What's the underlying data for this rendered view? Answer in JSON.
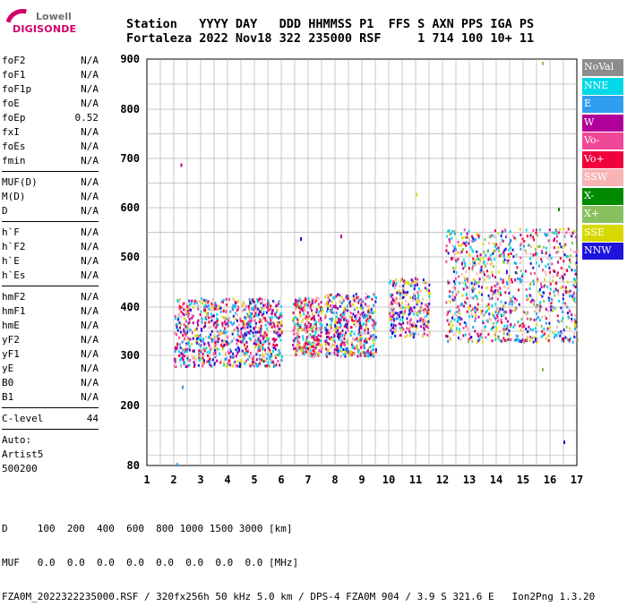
{
  "logo": {
    "brand_top": "Lowell",
    "brand_bottom": "DIGISONDE"
  },
  "header": {
    "line1": "Station   YYYY DAY   DDD HHMMSS P1  FFS S AXN PPS IGA PS",
    "line2": "Fortaleza 2022 Nov18 322 235000 RSF     1 714 100 10+ 11"
  },
  "params": {
    "group1": [
      {
        "name": "foF2",
        "value": "N/A"
      },
      {
        "name": "foF1",
        "value": "N/A"
      },
      {
        "name": "foF1p",
        "value": "N/A"
      },
      {
        "name": "foE",
        "value": "N/A"
      },
      {
        "name": "foEp",
        "value": "0.52"
      },
      {
        "name": "fxI",
        "value": "N/A"
      },
      {
        "name": "foEs",
        "value": "N/A"
      },
      {
        "name": "fmin",
        "value": "N/A"
      }
    ],
    "group2": [
      {
        "name": "MUF(D)",
        "value": "N/A"
      },
      {
        "name": "M(D)",
        "value": "N/A"
      },
      {
        "name": "D",
        "value": "N/A"
      }
    ],
    "group3": [
      {
        "name": "h`F",
        "value": "N/A"
      },
      {
        "name": "h`F2",
        "value": "N/A"
      },
      {
        "name": "h`E",
        "value": "N/A"
      },
      {
        "name": "h`Es",
        "value": "N/A"
      }
    ],
    "group4": [
      {
        "name": "hmF2",
        "value": "N/A"
      },
      {
        "name": "hmF1",
        "value": "N/A"
      },
      {
        "name": "hmE",
        "value": "N/A"
      },
      {
        "name": "yF2",
        "value": "N/A"
      },
      {
        "name": "yF1",
        "value": "N/A"
      },
      {
        "name": "yE",
        "value": "N/A"
      },
      {
        "name": "B0",
        "value": "N/A"
      },
      {
        "name": "B1",
        "value": "N/A"
      }
    ],
    "group5": [
      {
        "name": "C-level",
        "value": "44"
      }
    ]
  },
  "auto": {
    "line1": "Auto:",
    "line2": "Artist5",
    "line3": "500200"
  },
  "legend": [
    {
      "label": "NoVal",
      "color": "#8c8c8c"
    },
    {
      "label": "NNE",
      "color": "#00d8e8"
    },
    {
      "label": "E",
      "color": "#2f9df0"
    },
    {
      "label": "W",
      "color": "#b0009a"
    },
    {
      "label": "Vo-",
      "color": "#f04898"
    },
    {
      "label": "Vo+",
      "color": "#f0003c"
    },
    {
      "label": "SSW",
      "color": "#f8b4b4"
    },
    {
      "label": "X-",
      "color": "#008a00"
    },
    {
      "label": "X+",
      "color": "#88c060"
    },
    {
      "label": "SSE",
      "color": "#d8d800"
    },
    {
      "label": "NNW",
      "color": "#1e14dc"
    }
  ],
  "footer": {
    "line1": "D     100  200  400  600  800 1000 1500 3000 [km]",
    "line2": "MUF   0.0  0.0  0.0  0.0  0.0  0.0  0.0  0.0 [MHz]",
    "line3": "FZA0M_2022322235000.RSF / 320fx256h 50 kHz 5.0 km / DPS-4 FZA0M 904 / 3.9 S 321.6 E   Ion2Png 1.3.20"
  },
  "chart_data": {
    "type": "scatter",
    "xlim": [
      1,
      17
    ],
    "ylim": [
      80,
      900
    ],
    "x_ticks": [
      1,
      2,
      3,
      4,
      5,
      6,
      7,
      8,
      9,
      10,
      11,
      12,
      13,
      14,
      15,
      16,
      17
    ],
    "y_ticks": [
      80,
      200,
      300,
      400,
      500,
      600,
      700,
      800,
      900
    ],
    "grid": true,
    "legend_position": "right",
    "clusters": [
      {
        "name": "band-2-6",
        "x_range": [
          2.0,
          6.0
        ],
        "y_range": [
          280,
          420
        ],
        "color_set": [
          "Vo+",
          "SSW",
          "Vo-",
          "W",
          "E",
          "SSE",
          "NNE",
          "NNW"
        ],
        "density": 900
      },
      {
        "name": "band-6.5-7.5",
        "x_range": [
          6.4,
          7.5
        ],
        "y_range": [
          300,
          420
        ],
        "color_set": [
          "Vo+",
          "SSW",
          "Vo-",
          "W",
          "SSE",
          "NNE"
        ],
        "density": 320
      },
      {
        "name": "band-7.6-9.5",
        "x_range": [
          7.6,
          9.5
        ],
        "y_range": [
          300,
          430
        ],
        "color_set": [
          "Vo+",
          "SSW",
          "Vo-",
          "W",
          "SSE",
          "NNE",
          "E",
          "NNW"
        ],
        "density": 450
      },
      {
        "name": "band-10-11.5",
        "x_range": [
          10.0,
          11.5
        ],
        "y_range": [
          340,
          460
        ],
        "color_set": [
          "W",
          "SSW",
          "Vo-",
          "NNE",
          "NNW",
          "SSE"
        ],
        "density": 280
      },
      {
        "name": "band-12-17",
        "x_range": [
          12.1,
          17.0
        ],
        "y_range": [
          330,
          560
        ],
        "color_set": [
          "W",
          "NNE",
          "E",
          "NNW",
          "Vo-",
          "SSE",
          "Vo+",
          "SSW",
          "X+"
        ],
        "density": 900
      }
    ],
    "outliers": [
      {
        "x": 2.25,
        "y": 690,
        "series": "W"
      },
      {
        "x": 2.1,
        "y": 85,
        "series": "E"
      },
      {
        "x": 2.3,
        "y": 240,
        "series": "E"
      },
      {
        "x": 16.5,
        "y": 130,
        "series": "NNW"
      },
      {
        "x": 15.7,
        "y": 895,
        "series": "X+"
      },
      {
        "x": 15.7,
        "y": 275,
        "series": "X+"
      },
      {
        "x": 6.7,
        "y": 540,
        "series": "NNW"
      },
      {
        "x": 8.2,
        "y": 545,
        "series": "W"
      },
      {
        "x": 11.0,
        "y": 630,
        "series": "SSE"
      },
      {
        "x": 16.3,
        "y": 600,
        "series": "X-"
      },
      {
        "x": 12.7,
        "y": 490,
        "series": "W"
      }
    ]
  }
}
